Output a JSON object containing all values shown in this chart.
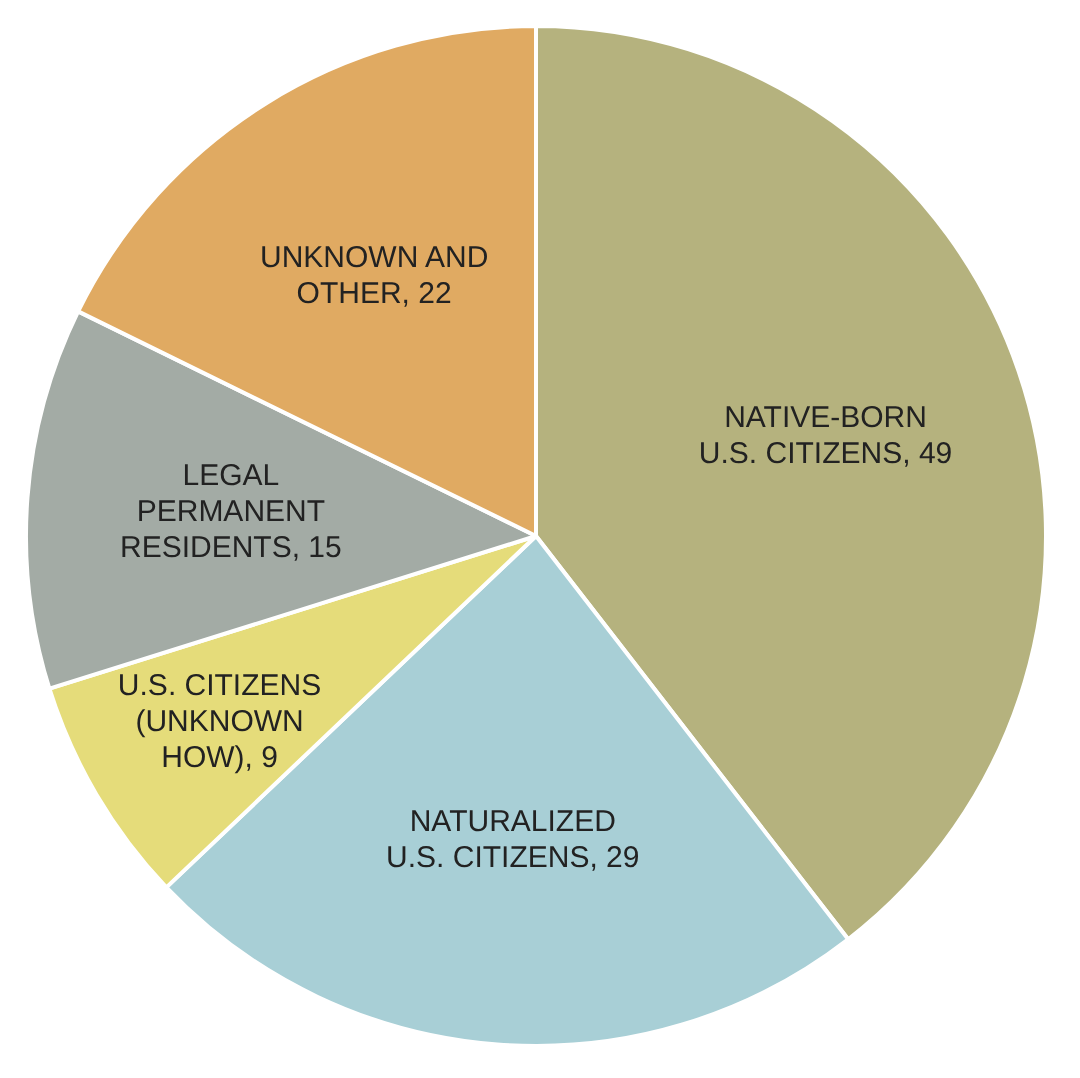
{
  "chart_data": {
    "type": "pie",
    "categories": [
      "NATIVE-BORN U.S. CITIZENS, 49",
      "NATURALIZED U.S. CITIZENS, 29",
      "U.S. CITIZENS (UNKNOWN HOW), 9",
      "LEGAL PERMANENT RESIDENTS, 15",
      "UNKNOWN AND OTHER, 22"
    ],
    "values": [
      49,
      29,
      9,
      15,
      22
    ],
    "colors": [
      "#b5b27e",
      "#a8cfd6",
      "#e5dc7a",
      "#a3aba5",
      "#e0aa62"
    ]
  }
}
